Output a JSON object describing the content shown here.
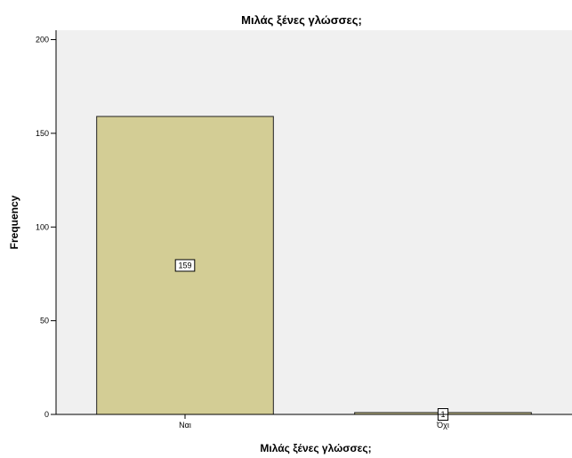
{
  "chart_data": {
    "type": "bar",
    "title": "Μιλάς ξένες γλώσσες;",
    "xlabel": "Μιλάς ξένες γλώσσες;",
    "ylabel": "Frequency",
    "categories": [
      "Ναι",
      "Όχι"
    ],
    "values": [
      159,
      1
    ],
    "data_labels": [
      "159",
      "1"
    ],
    "ylim": [
      0,
      205
    ],
    "yticks": [
      0,
      50,
      100,
      150,
      200
    ],
    "grid": false,
    "legend": "none",
    "colors": {
      "bar_fill": "#d3cd95",
      "bar_stroke": "#222222",
      "plot_background": "#f0f0f0",
      "axis": "#000000",
      "label_box_fill": "#ffffff"
    }
  }
}
